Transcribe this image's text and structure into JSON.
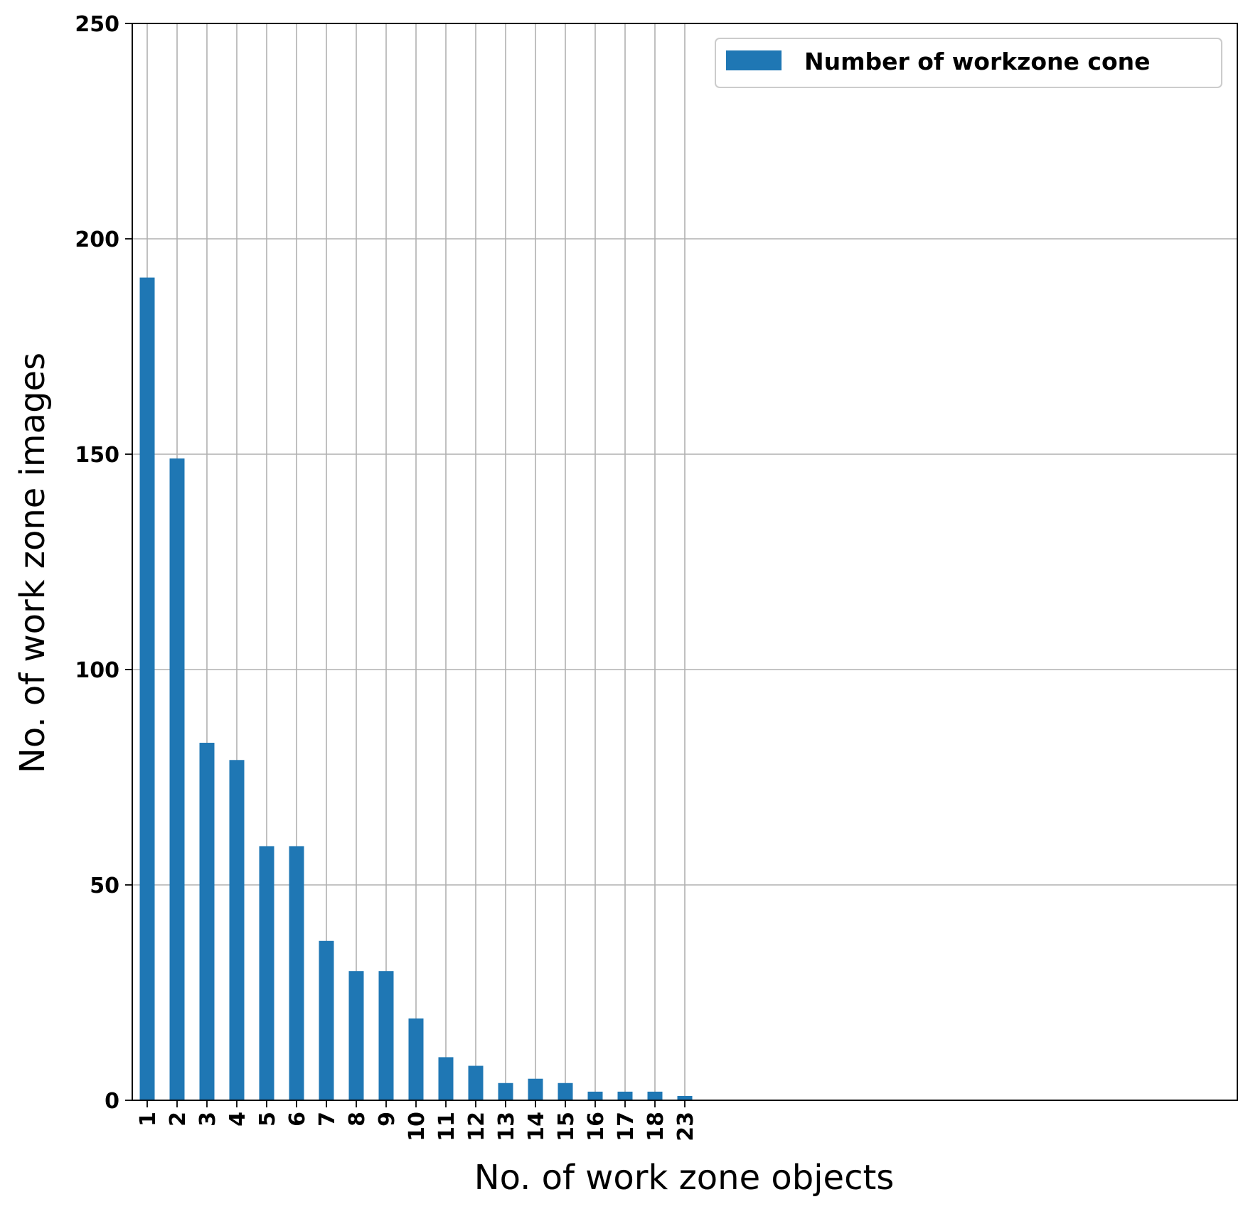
{
  "chart_data": {
    "type": "bar",
    "title": "",
    "xlabel": "No. of work zone objects",
    "ylabel": "No. of work zone images",
    "categories": [
      "1",
      "2",
      "3",
      "4",
      "5",
      "6",
      "7",
      "8",
      "9",
      "10",
      "11",
      "12",
      "13",
      "14",
      "15",
      "16",
      "17",
      "18",
      "23"
    ],
    "series": [
      {
        "name": "Number of workzone cone",
        "color": "#1f77b4",
        "values": [
          191,
          149,
          83,
          79,
          59,
          59,
          37,
          30,
          30,
          19,
          10,
          8,
          4,
          5,
          4,
          2,
          2,
          2,
          1
        ]
      }
    ],
    "ylim": [
      0,
      250
    ],
    "yticks": [
      0,
      50,
      100,
      150,
      200,
      250
    ],
    "x_slots": 37,
    "grid": true,
    "grid_color": "#b0b0b0",
    "legend_position": "top-right"
  }
}
